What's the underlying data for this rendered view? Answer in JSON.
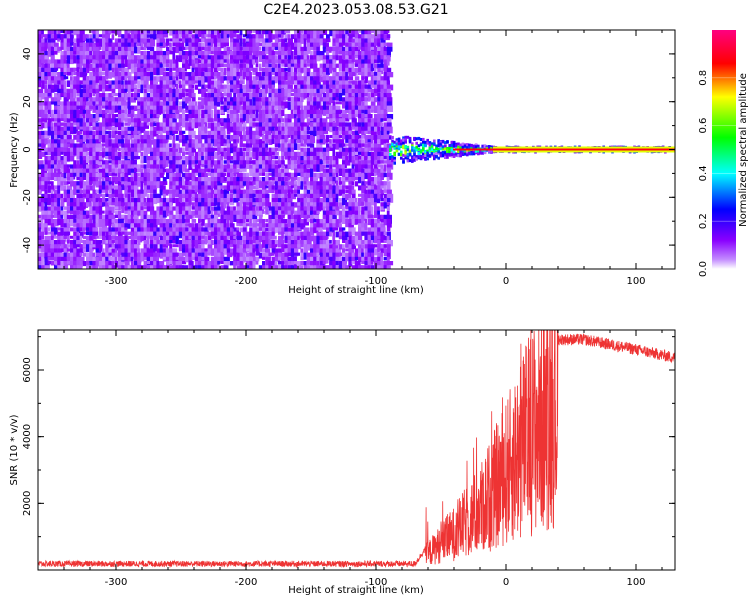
{
  "title": "C2E4.2023.053.08.53.G21",
  "chart_data": [
    {
      "type": "heatmap",
      "xlabel": "Height of straight line (km)",
      "ylabel": "Frequency (Hz)",
      "xlim": [
        -360,
        130
      ],
      "ylim": [
        -50,
        50
      ],
      "x_ticks": [
        -300,
        -200,
        -100,
        0,
        100
      ],
      "y_ticks": [
        -40,
        -20,
        0,
        20,
        40
      ],
      "noise_region_x": [
        -360,
        -90
      ],
      "signal_band_freq": 0,
      "colorbar": {
        "label": "Normalized spectral amplitude",
        "range": [
          0,
          1
        ],
        "ticks": [
          0.0,
          0.2,
          0.4,
          0.6,
          0.8
        ],
        "colormap": [
          "#ffffff",
          "#8a00ff",
          "#0000ff",
          "#00ffff",
          "#00ff00",
          "#ffff00",
          "#ff0000",
          "#ff0080"
        ]
      }
    },
    {
      "type": "line",
      "xlabel": "Height of straight line (km)",
      "ylabel": "SNR (10 * v/v)",
      "xlim": [
        -360,
        130
      ],
      "ylim": [
        0,
        7200
      ],
      "x_ticks": [
        -300,
        -200,
        -100,
        0,
        100
      ],
      "y_ticks": [
        2000,
        4000,
        6000
      ],
      "color": "#ee3333",
      "envelope": {
        "x": [
          -360,
          -70,
          -62,
          -40,
          -20,
          0,
          20,
          40,
          60,
          80,
          100,
          130
        ],
        "y": [
          150,
          150,
          600,
          1500,
          2500,
          4000,
          5800,
          6950,
          6950,
          6800,
          6650,
          6400
        ]
      }
    }
  ]
}
